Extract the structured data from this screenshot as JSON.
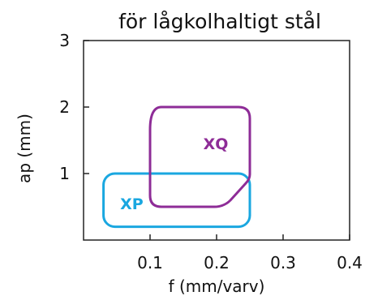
{
  "chart_data": {
    "type": "area",
    "title": "för lågkolhaltigt stål",
    "xlabel": "f (mm/varv)",
    "ylabel": "ap (mm)",
    "xlim": [
      0,
      0.4
    ],
    "ylim": [
      0,
      3
    ],
    "x_ticks": [
      {
        "value": 0.1,
        "label": "0.1"
      },
      {
        "value": 0.2,
        "label": "0.2"
      },
      {
        "value": 0.3,
        "label": "0.3"
      },
      {
        "value": 0.4,
        "label": "0.4"
      }
    ],
    "y_ticks": [
      {
        "value": 1,
        "label": "1"
      },
      {
        "value": 2,
        "label": "2"
      },
      {
        "value": 3,
        "label": "3"
      }
    ],
    "grid": false,
    "regions": [
      {
        "name": "XP",
        "color": "#1aa7e0",
        "x_range": [
          0.03,
          0.25
        ],
        "y_range": [
          0.2,
          1.0
        ],
        "label_at": [
          0.055,
          0.55
        ]
      },
      {
        "name": "XQ",
        "color": "#8e2c97",
        "x_range": [
          0.1,
          0.25
        ],
        "y_range": [
          0.5,
          2.0
        ],
        "label_at": [
          0.18,
          1.45
        ]
      }
    ]
  }
}
